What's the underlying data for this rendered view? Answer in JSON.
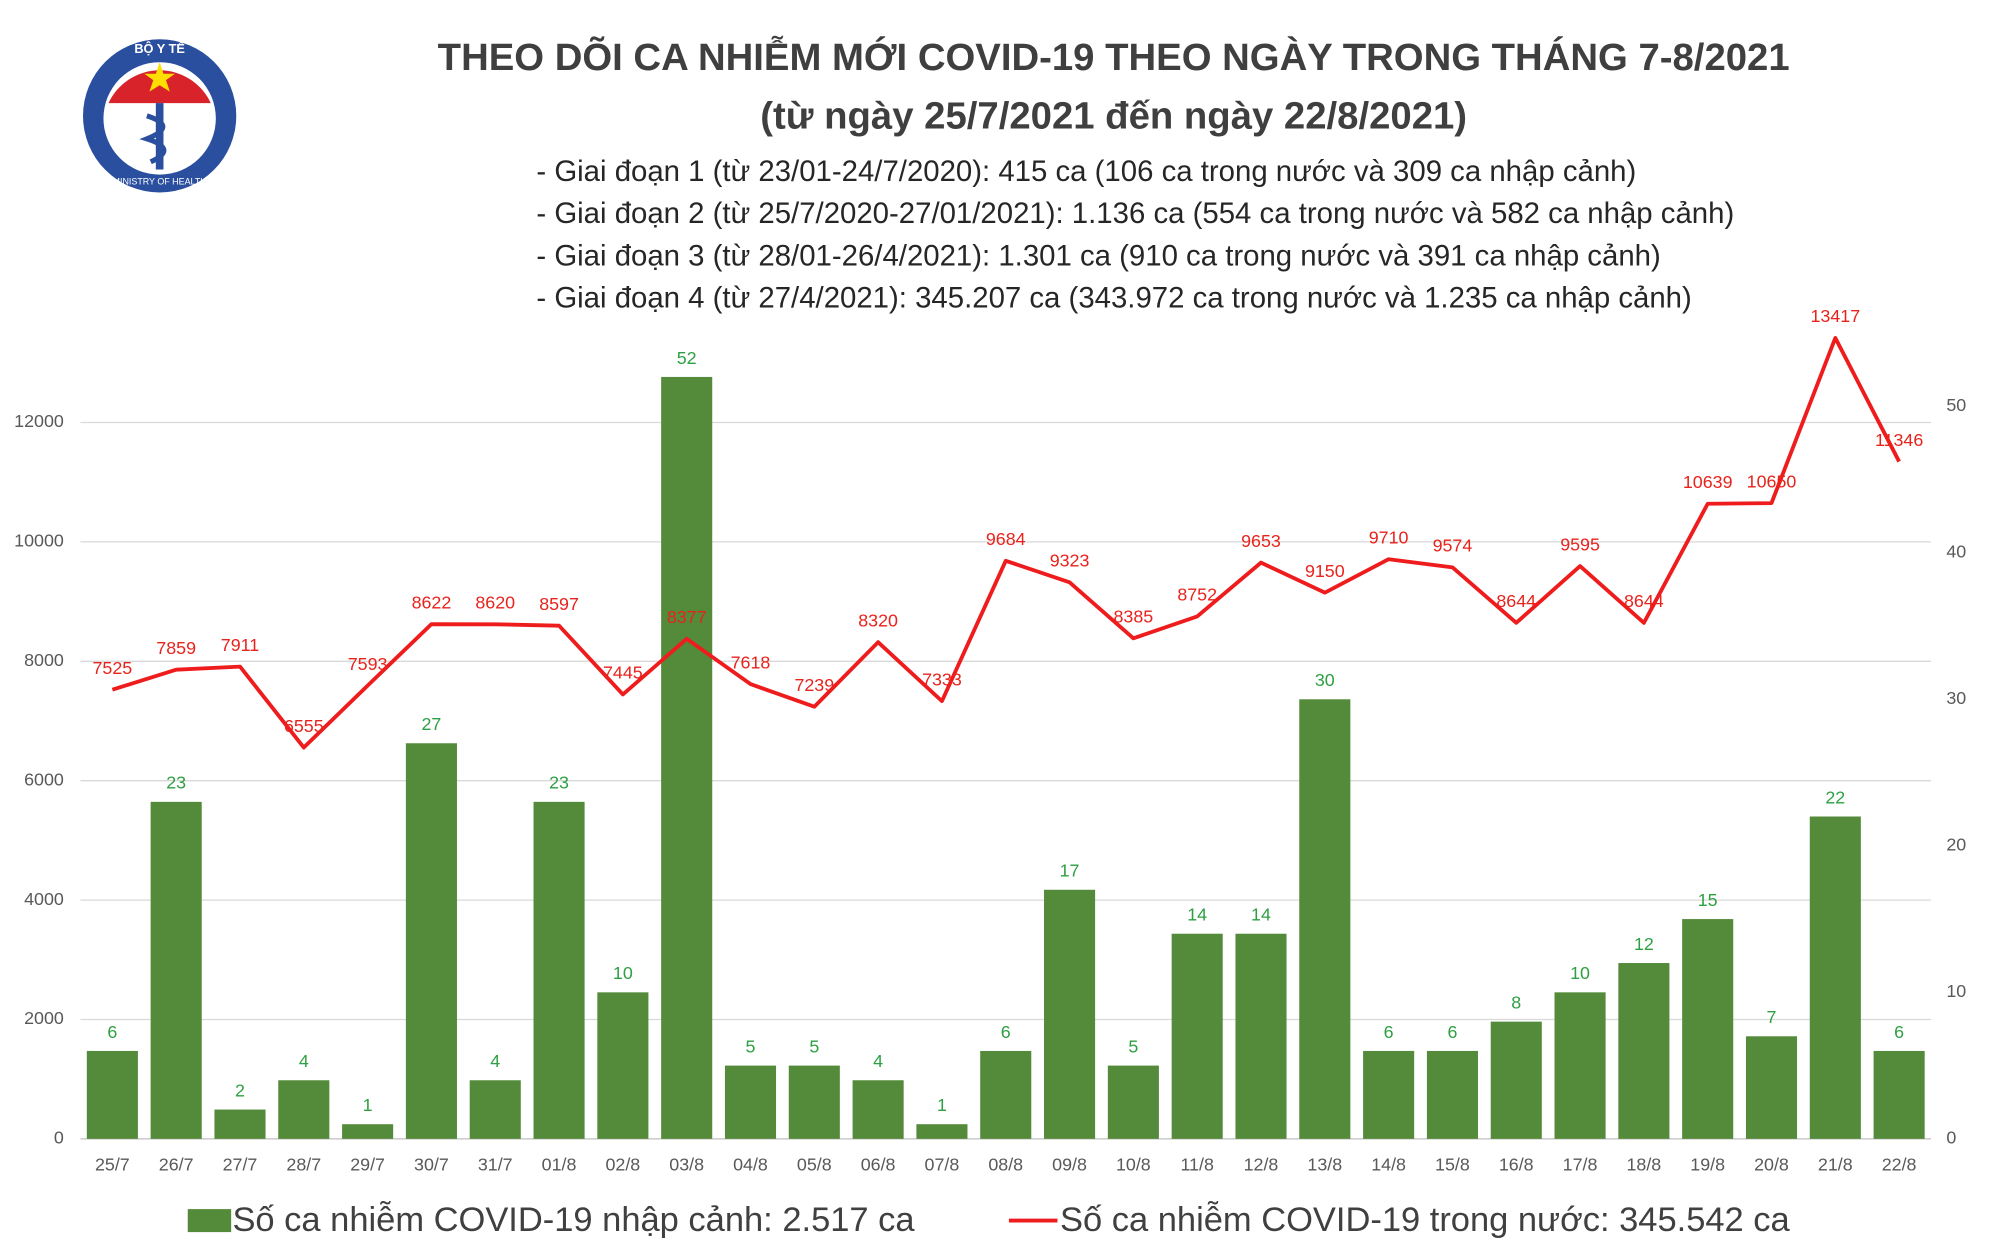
{
  "logo": {
    "top": "BỘ Y TẾ",
    "bottom": "MINISTRY OF HEALTH"
  },
  "chart_data": {
    "type": "bar-line",
    "title": "THEO DÕI CA NHIỄM MỚI COVID-19 THEO NGÀY TRONG THÁNG 7-8/2021",
    "subtitle": "(từ ngày 25/7/2021 đến ngày 22/8/2021)",
    "notes": [
      "- Giai đoạn 1 (từ 23/01-24/7/2020): 415 ca (106 ca trong nước và 309 ca nhập cảnh)",
      "- Giai đoạn 2 (từ 25/7/2020-27/01/2021): 1.136 ca (554 ca trong nước và 582 ca nhập cảnh)",
      "- Giai đoạn 3 (từ 28/01-26/4/2021): 1.301 ca (910 ca trong nước và 391 ca nhập cảnh)",
      "- Giai đoạn 4 (từ 27/4/2021): 345.207 ca (343.972 ca trong nước và 1.235 ca nhập cảnh)"
    ],
    "categories": [
      "25/7",
      "26/7",
      "27/7",
      "28/7",
      "29/7",
      "30/7",
      "31/7",
      "01/8",
      "02/8",
      "03/8",
      "04/8",
      "05/8",
      "06/8",
      "07/8",
      "08/8",
      "09/8",
      "10/8",
      "11/8",
      "12/8",
      "13/8",
      "14/8",
      "15/8",
      "16/8",
      "17/8",
      "18/8",
      "19/8",
      "20/8",
      "21/8",
      "22/8"
    ],
    "series": [
      {
        "name": "Số ca nhiễm COVID-19 nhập cảnh: 2.517 ca",
        "type": "bar",
        "axis": "y2",
        "color": "#548b3a",
        "label_color": "#2ea043",
        "values": [
          6,
          23,
          2,
          4,
          1,
          27,
          4,
          23,
          10,
          52,
          5,
          5,
          4,
          1,
          6,
          17,
          5,
          14,
          14,
          30,
          6,
          6,
          8,
          10,
          12,
          15,
          7,
          22,
          6
        ]
      },
      {
        "name": "Số ca nhiễm COVID-19 trong nước: 345.542 ca",
        "type": "line",
        "color": "#ee1c1c",
        "label_color": "#e8231c",
        "values": [
          7525,
          7859,
          7911,
          6555,
          7593,
          8622,
          8620,
          8597,
          7445,
          8377,
          7618,
          7239,
          8320,
          7333,
          9684,
          9323,
          8385,
          8752,
          9653,
          9150,
          9710,
          9574,
          8644,
          9595,
          8644,
          10639,
          10650,
          13417,
          11346
        ]
      }
    ],
    "ylim": [
      0,
      13500
    ],
    "yticks": [
      0,
      2000,
      4000,
      6000,
      8000,
      10000,
      12000
    ],
    "y2lim": [
      0,
      55
    ],
    "y2ticks": [
      0,
      10,
      20,
      30,
      40,
      50
    ],
    "grid": true
  }
}
